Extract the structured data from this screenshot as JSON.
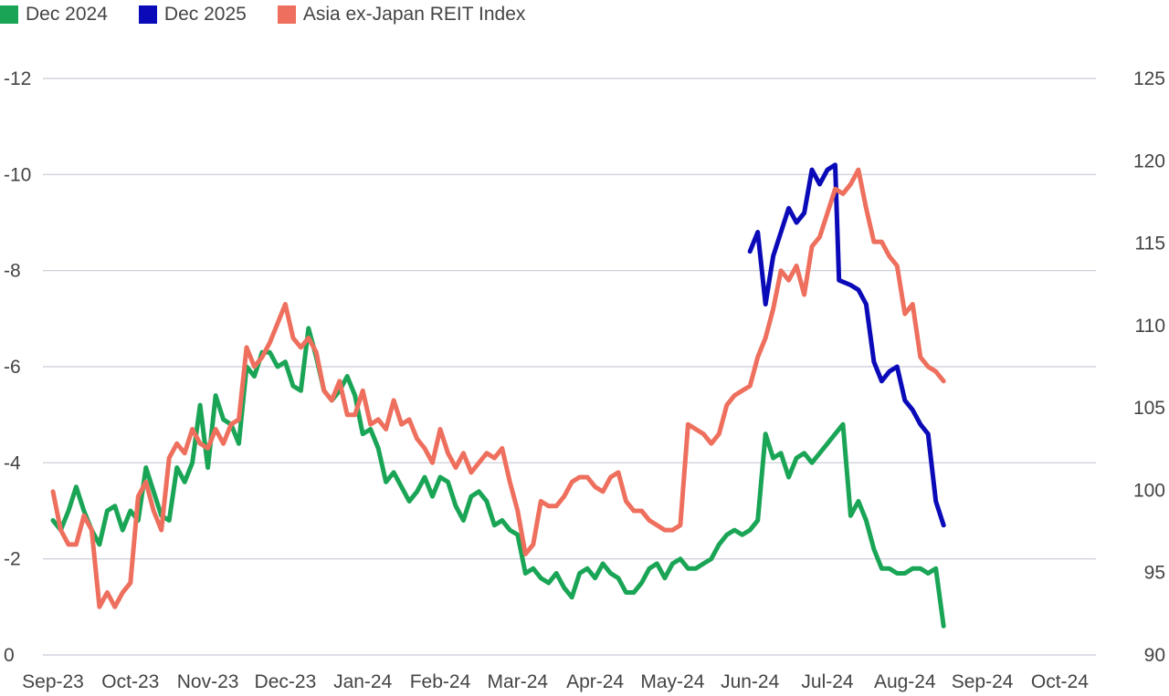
{
  "legend": [
    {
      "label": "Dec 2024",
      "color": "#1aa556"
    },
    {
      "label": "Dec 2025",
      "color": "#0a0ab8"
    },
    {
      "label": "Asia ex-Japan REIT Index",
      "color": "#ee6f5d"
    }
  ],
  "chart_data": {
    "type": "line",
    "title": "",
    "xlabel": "",
    "ylabel": "",
    "x_ticks": [
      "Sep-23",
      "Oct-23",
      "Nov-23",
      "Dec-23",
      "Jan-24",
      "Feb-24",
      "Mar-24",
      "Apr-24",
      "May-24",
      "Jun-24",
      "Jul-24",
      "Aug-24",
      "Sep-24",
      "Oct-24"
    ],
    "y_left": {
      "range": [
        0,
        -12
      ],
      "ticks": [
        0,
        -2,
        -4,
        -6,
        -8,
        -10,
        -12
      ],
      "labels": [
        "0",
        "-2",
        "-4",
        "-6",
        "-8",
        "-10",
        "-12"
      ]
    },
    "y_right": {
      "range": [
        90,
        125
      ],
      "ticks": [
        90,
        95,
        100,
        105,
        110,
        115,
        120,
        125
      ],
      "labels": [
        "90",
        "95",
        "100",
        "105",
        "110",
        "115",
        "120",
        "125"
      ]
    },
    "grid": true,
    "legend_position": "top-left",
    "series": [
      {
        "name": "Dec 2024",
        "axis": "left",
        "color": "#1aa556",
        "points": [
          [
            0,
            -2.8
          ],
          [
            0.1,
            -2.6
          ],
          [
            0.2,
            -3.0
          ],
          [
            0.3,
            -3.5
          ],
          [
            0.4,
            -3.0
          ],
          [
            0.5,
            -2.6
          ],
          [
            0.6,
            -2.3
          ],
          [
            0.7,
            -3.0
          ],
          [
            0.8,
            -3.1
          ],
          [
            0.9,
            -2.6
          ],
          [
            1.0,
            -3.0
          ],
          [
            1.1,
            -2.8
          ],
          [
            1.2,
            -3.9
          ],
          [
            1.3,
            -3.4
          ],
          [
            1.4,
            -2.9
          ],
          [
            1.5,
            -2.8
          ],
          [
            1.6,
            -3.9
          ],
          [
            1.7,
            -3.6
          ],
          [
            1.8,
            -4.0
          ],
          [
            1.9,
            -5.2
          ],
          [
            2.0,
            -3.9
          ],
          [
            2.1,
            -5.4
          ],
          [
            2.2,
            -4.9
          ],
          [
            2.3,
            -4.8
          ],
          [
            2.4,
            -4.4
          ],
          [
            2.5,
            -6.0
          ],
          [
            2.6,
            -5.8
          ],
          [
            2.7,
            -6.3
          ],
          [
            2.8,
            -6.3
          ],
          [
            2.9,
            -6.0
          ],
          [
            3.0,
            -6.1
          ],
          [
            3.1,
            -5.6
          ],
          [
            3.2,
            -5.5
          ],
          [
            3.3,
            -6.8
          ],
          [
            3.4,
            -6.2
          ],
          [
            3.5,
            -5.5
          ],
          [
            3.6,
            -5.3
          ],
          [
            3.7,
            -5.5
          ],
          [
            3.8,
            -5.8
          ],
          [
            3.9,
            -5.4
          ],
          [
            4.0,
            -4.6
          ],
          [
            4.1,
            -4.7
          ],
          [
            4.2,
            -4.3
          ],
          [
            4.3,
            -3.6
          ],
          [
            4.4,
            -3.8
          ],
          [
            4.5,
            -3.5
          ],
          [
            4.6,
            -3.2
          ],
          [
            4.7,
            -3.4
          ],
          [
            4.8,
            -3.7
          ],
          [
            4.9,
            -3.3
          ],
          [
            5.0,
            -3.7
          ],
          [
            5.1,
            -3.6
          ],
          [
            5.2,
            -3.1
          ],
          [
            5.3,
            -2.8
          ],
          [
            5.4,
            -3.3
          ],
          [
            5.5,
            -3.4
          ],
          [
            5.6,
            -3.2
          ],
          [
            5.7,
            -2.7
          ],
          [
            5.8,
            -2.8
          ],
          [
            5.9,
            -2.6
          ],
          [
            6.0,
            -2.5
          ],
          [
            6.1,
            -1.7
          ],
          [
            6.2,
            -1.8
          ],
          [
            6.3,
            -1.6
          ],
          [
            6.4,
            -1.5
          ],
          [
            6.5,
            -1.7
          ],
          [
            6.6,
            -1.4
          ],
          [
            6.7,
            -1.2
          ],
          [
            6.8,
            -1.7
          ],
          [
            6.9,
            -1.8
          ],
          [
            7.0,
            -1.6
          ],
          [
            7.1,
            -1.9
          ],
          [
            7.2,
            -1.7
          ],
          [
            7.3,
            -1.6
          ],
          [
            7.4,
            -1.3
          ],
          [
            7.5,
            -1.3
          ],
          [
            7.6,
            -1.5
          ],
          [
            7.7,
            -1.8
          ],
          [
            7.8,
            -1.9
          ],
          [
            7.9,
            -1.6
          ],
          [
            8.0,
            -1.9
          ],
          [
            8.1,
            -2.0
          ],
          [
            8.2,
            -1.8
          ],
          [
            8.3,
            -1.8
          ],
          [
            8.4,
            -1.9
          ],
          [
            8.5,
            -2.0
          ],
          [
            8.6,
            -2.3
          ],
          [
            8.7,
            -2.5
          ],
          [
            8.8,
            -2.6
          ],
          [
            8.9,
            -2.5
          ],
          [
            9.0,
            -2.6
          ],
          [
            9.1,
            -2.8
          ],
          [
            9.2,
            -4.6
          ],
          [
            9.3,
            -4.1
          ],
          [
            9.4,
            -4.2
          ],
          [
            9.5,
            -3.7
          ],
          [
            9.6,
            -4.1
          ],
          [
            9.7,
            -4.2
          ],
          [
            9.8,
            -4.0
          ],
          [
            9.9,
            -4.2
          ],
          [
            10.0,
            -4.4
          ],
          [
            10.1,
            -4.6
          ],
          [
            10.2,
            -4.8
          ],
          [
            10.3,
            -2.9
          ],
          [
            10.4,
            -3.2
          ],
          [
            10.5,
            -2.8
          ],
          [
            10.6,
            -2.2
          ],
          [
            10.7,
            -1.8
          ],
          [
            10.8,
            -1.8
          ],
          [
            10.9,
            -1.7
          ],
          [
            11.0,
            -1.7
          ],
          [
            11.1,
            -1.8
          ],
          [
            11.2,
            -1.8
          ],
          [
            11.3,
            -1.7
          ],
          [
            11.4,
            -1.8
          ],
          [
            11.5,
            -0.6
          ]
        ]
      },
      {
        "name": "Dec 2025",
        "axis": "left",
        "color": "#0a0ab8",
        "points": [
          [
            9.0,
            -8.4
          ],
          [
            9.1,
            -8.8
          ],
          [
            9.2,
            -7.3
          ],
          [
            9.3,
            -8.3
          ],
          [
            9.4,
            -8.8
          ],
          [
            9.5,
            -9.3
          ],
          [
            9.6,
            -9.0
          ],
          [
            9.7,
            -9.2
          ],
          [
            9.8,
            -10.1
          ],
          [
            9.9,
            -9.8
          ],
          [
            10.0,
            -10.1
          ],
          [
            10.1,
            -10.2
          ],
          [
            10.15,
            -7.8
          ],
          [
            10.3,
            -7.7
          ],
          [
            10.4,
            -7.6
          ],
          [
            10.5,
            -7.3
          ],
          [
            10.6,
            -6.1
          ],
          [
            10.7,
            -5.7
          ],
          [
            10.8,
            -5.9
          ],
          [
            10.9,
            -6.0
          ],
          [
            11.0,
            -5.3
          ],
          [
            11.1,
            -5.1
          ],
          [
            11.2,
            -4.8
          ],
          [
            11.3,
            -4.6
          ],
          [
            11.4,
            -3.2
          ],
          [
            11.5,
            -2.7
          ]
        ]
      },
      {
        "name": "Asia ex-Japan REIT Index",
        "axis": "left",
        "color": "#ee6f5d",
        "points": [
          [
            0,
            -3.4
          ],
          [
            0.1,
            -2.6
          ],
          [
            0.2,
            -2.3
          ],
          [
            0.3,
            -2.3
          ],
          [
            0.4,
            -2.9
          ],
          [
            0.5,
            -2.6
          ],
          [
            0.6,
            -1.0
          ],
          [
            0.7,
            -1.3
          ],
          [
            0.8,
            -1.0
          ],
          [
            0.9,
            -1.3
          ],
          [
            1.0,
            -1.5
          ],
          [
            1.1,
            -3.3
          ],
          [
            1.2,
            -3.6
          ],
          [
            1.3,
            -3.0
          ],
          [
            1.4,
            -2.6
          ],
          [
            1.5,
            -4.1
          ],
          [
            1.6,
            -4.4
          ],
          [
            1.7,
            -4.2
          ],
          [
            1.8,
            -4.7
          ],
          [
            1.9,
            -4.4
          ],
          [
            2.0,
            -4.3
          ],
          [
            2.1,
            -4.7
          ],
          [
            2.2,
            -4.4
          ],
          [
            2.3,
            -4.8
          ],
          [
            2.4,
            -4.9
          ],
          [
            2.5,
            -6.4
          ],
          [
            2.6,
            -6.0
          ],
          [
            2.7,
            -6.2
          ],
          [
            2.8,
            -6.5
          ],
          [
            2.9,
            -6.9
          ],
          [
            3.0,
            -7.3
          ],
          [
            3.1,
            -6.6
          ],
          [
            3.2,
            -6.4
          ],
          [
            3.3,
            -6.6
          ],
          [
            3.4,
            -6.3
          ],
          [
            3.5,
            -5.5
          ],
          [
            3.6,
            -5.3
          ],
          [
            3.7,
            -5.7
          ],
          [
            3.8,
            -5.0
          ],
          [
            3.9,
            -5.0
          ],
          [
            4.0,
            -5.5
          ],
          [
            4.1,
            -4.8
          ],
          [
            4.2,
            -4.9
          ],
          [
            4.3,
            -4.7
          ],
          [
            4.4,
            -5.3
          ],
          [
            4.5,
            -4.8
          ],
          [
            4.6,
            -4.9
          ],
          [
            4.7,
            -4.5
          ],
          [
            4.8,
            -4.3
          ],
          [
            4.9,
            -4.0
          ],
          [
            5.0,
            -4.7
          ],
          [
            5.1,
            -4.2
          ],
          [
            5.2,
            -3.9
          ],
          [
            5.3,
            -4.2
          ],
          [
            5.4,
            -3.8
          ],
          [
            5.5,
            -4.0
          ],
          [
            5.6,
            -4.2
          ],
          [
            5.7,
            -4.1
          ],
          [
            5.8,
            -4.3
          ],
          [
            5.9,
            -3.6
          ],
          [
            6.0,
            -3.0
          ],
          [
            6.1,
            -2.1
          ],
          [
            6.2,
            -2.3
          ],
          [
            6.3,
            -3.2
          ],
          [
            6.4,
            -3.1
          ],
          [
            6.5,
            -3.1
          ],
          [
            6.6,
            -3.3
          ],
          [
            6.7,
            -3.6
          ],
          [
            6.8,
            -3.7
          ],
          [
            6.9,
            -3.7
          ],
          [
            7.0,
            -3.5
          ],
          [
            7.1,
            -3.4
          ],
          [
            7.2,
            -3.7
          ],
          [
            7.3,
            -3.8
          ],
          [
            7.4,
            -3.2
          ],
          [
            7.5,
            -3.0
          ],
          [
            7.6,
            -3.0
          ],
          [
            7.7,
            -2.8
          ],
          [
            7.8,
            -2.7
          ],
          [
            7.9,
            -2.6
          ],
          [
            8.0,
            -2.6
          ],
          [
            8.1,
            -2.7
          ],
          [
            8.2,
            -4.8
          ],
          [
            8.3,
            -4.7
          ],
          [
            8.4,
            -4.6
          ],
          [
            8.5,
            -4.4
          ],
          [
            8.6,
            -4.6
          ],
          [
            8.7,
            -5.2
          ],
          [
            8.8,
            -5.4
          ],
          [
            8.9,
            -5.5
          ],
          [
            9.0,
            -5.6
          ],
          [
            9.1,
            -6.2
          ],
          [
            9.2,
            -6.6
          ],
          [
            9.3,
            -7.2
          ],
          [
            9.4,
            -8.0
          ],
          [
            9.5,
            -7.8
          ],
          [
            9.6,
            -8.1
          ],
          [
            9.7,
            -7.5
          ],
          [
            9.8,
            -8.5
          ],
          [
            9.9,
            -8.7
          ],
          [
            10.0,
            -9.2
          ],
          [
            10.1,
            -9.7
          ],
          [
            10.2,
            -9.6
          ],
          [
            10.3,
            -9.8
          ],
          [
            10.4,
            -10.1
          ],
          [
            10.5,
            -9.3
          ],
          [
            10.6,
            -8.6
          ],
          [
            10.7,
            -8.6
          ],
          [
            10.8,
            -8.3
          ],
          [
            10.9,
            -8.1
          ],
          [
            11.0,
            -7.1
          ],
          [
            11.1,
            -7.3
          ],
          [
            11.2,
            -6.2
          ],
          [
            11.3,
            -6.0
          ],
          [
            11.4,
            -5.9
          ],
          [
            11.5,
            -5.7
          ]
        ]
      }
    ]
  }
}
